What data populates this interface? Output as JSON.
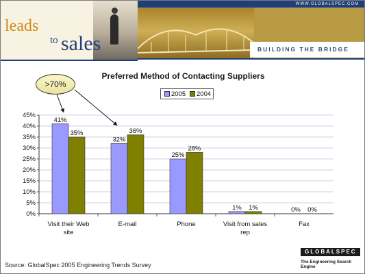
{
  "header": {
    "site": "WWW.GLOBALSPEC.COM",
    "logo_leads": "leads",
    "logo_to": "to",
    "logo_sales": "sales",
    "tagline": "BUILDING THE BRIDGE"
  },
  "callout": {
    "text": ">70%"
  },
  "footer": {
    "source": "Source: GlobalSpec 2005 Engineering Trends Survey",
    "brand": "GLOBALSPEC",
    "brand_tagline": "The Engineering Search Engine"
  },
  "colors": {
    "series_2005": "#9999ff",
    "series_2004": "#808000"
  },
  "chart_data": {
    "type": "bar",
    "title": "Preferred  Method of Contacting Suppliers",
    "categories": [
      "Visit their Web site",
      "E-mail",
      "Phone",
      "Visit from sales rep",
      "Fax"
    ],
    "category_lines": [
      [
        "Visit their Web",
        "site"
      ],
      [
        "E-mail"
      ],
      [
        "Phone"
      ],
      [
        "Visit from sales",
        "rep"
      ],
      [
        "Fax"
      ]
    ],
    "series": [
      {
        "name": "2005",
        "values": [
          41,
          32,
          25,
          1,
          0
        ],
        "labels": [
          "41%",
          "32%",
          "25%",
          "1%",
          "0%"
        ]
      },
      {
        "name": "2004",
        "values": [
          35,
          36,
          28,
          1,
          0
        ],
        "labels": [
          "35%",
          "36%",
          "28%",
          "1%",
          "0%"
        ]
      }
    ],
    "ylim": [
      0,
      45
    ],
    "yticks": [
      0,
      5,
      10,
      15,
      20,
      25,
      30,
      35,
      40,
      45
    ],
    "ytick_labels": [
      "0%",
      "5%",
      "10%",
      "15%",
      "20%",
      "25%",
      "30%",
      "35%",
      "40%",
      "45%"
    ],
    "xlabel": "",
    "ylabel": "",
    "grid": true,
    "legend_position": "top-center"
  }
}
